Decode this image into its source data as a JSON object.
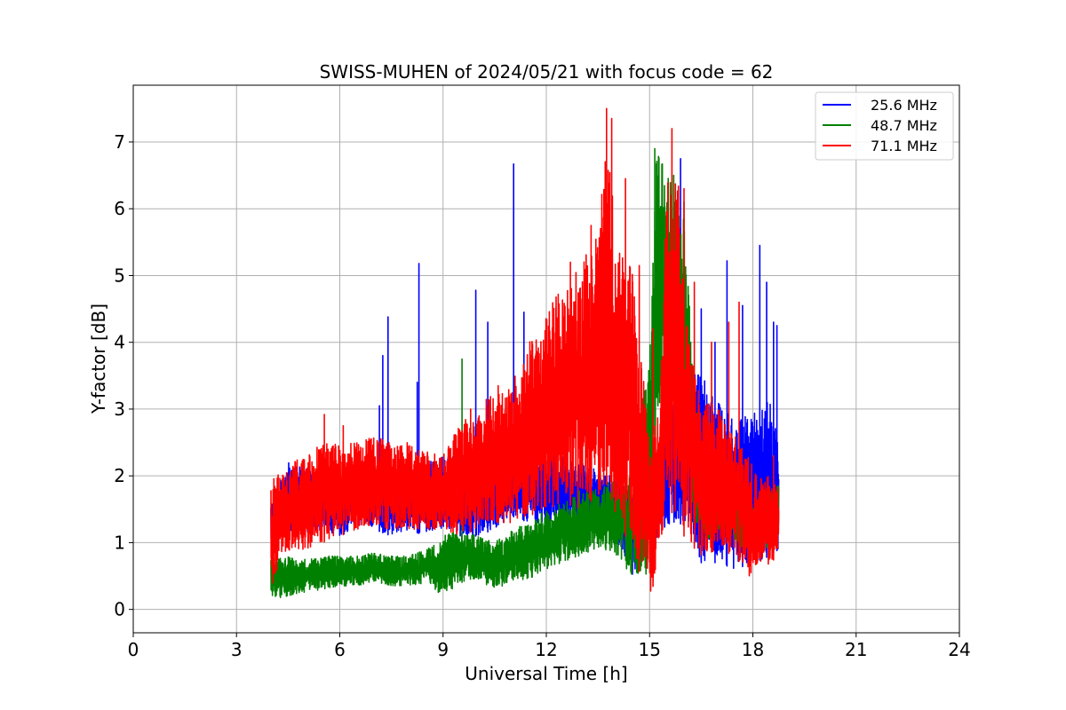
{
  "chart_data": {
    "type": "line",
    "title": "SWISS-MUHEN of 2024/05/21 with focus code = 62",
    "xlabel": "Universal Time [h]",
    "ylabel": "Y-factor [dB]",
    "xlim": [
      0,
      24
    ],
    "ylim": [
      -0.35,
      7.85
    ],
    "xticks": [
      0,
      3,
      6,
      9,
      12,
      15,
      18,
      21,
      24
    ],
    "yticks": [
      0,
      1,
      2,
      3,
      4,
      5,
      6,
      7
    ],
    "grid": true,
    "legend_position": "top-right",
    "series": [
      {
        "name": "25.6 MHz",
        "color": "#0000ff",
        "x_start": 4.0,
        "x_end": 18.75,
        "envelope": {
          "x": [
            4.0,
            4.5,
            5.0,
            5.5,
            6.0,
            6.5,
            7.0,
            7.5,
            8.0,
            8.5,
            9.0,
            9.5,
            10.0,
            10.5,
            11.0,
            11.5,
            12.0,
            12.5,
            13.0,
            13.5,
            14.0,
            14.5,
            15.0,
            15.5,
            16.0,
            16.5,
            17.0,
            17.5,
            18.0,
            18.5,
            18.75
          ],
          "low": [
            1.0,
            1.2,
            1.1,
            1.2,
            1.1,
            1.2,
            1.2,
            1.1,
            1.2,
            1.1,
            1.2,
            1.1,
            1.1,
            1.2,
            1.4,
            1.3,
            1.3,
            1.3,
            1.2,
            1.2,
            1.1,
            0.5,
            0.9,
            1.2,
            1.3,
            0.7,
            0.7,
            0.6,
            0.7,
            0.8,
            0.9
          ],
          "high": [
            1.6,
            2.2,
            2.1,
            2.1,
            2.0,
            2.1,
            2.2,
            2.1,
            2.2,
            2.2,
            2.3,
            2.3,
            2.3,
            2.1,
            2.4,
            2.3,
            2.4,
            2.3,
            2.2,
            2.1,
            2.0,
            1.8,
            2.4,
            3.0,
            3.4,
            3.6,
            3.2,
            2.8,
            3.0,
            3.2,
            2.4
          ]
        },
        "spikes": [
          [
            7.15,
            3.05
          ],
          [
            7.25,
            3.8
          ],
          [
            7.4,
            4.38
          ],
          [
            8.25,
            3.4
          ],
          [
            8.3,
            5.18
          ],
          [
            9.95,
            4.78
          ],
          [
            10.3,
            4.3
          ],
          [
            11.05,
            6.67
          ],
          [
            11.35,
            4.45
          ],
          [
            15.9,
            6.75
          ],
          [
            16.5,
            4.5
          ],
          [
            16.9,
            4.0
          ],
          [
            17.25,
            5.22
          ],
          [
            17.7,
            4.55
          ],
          [
            18.2,
            5.45
          ],
          [
            18.4,
            4.9
          ],
          [
            18.6,
            4.3
          ],
          [
            18.7,
            4.25
          ]
        ]
      },
      {
        "name": "48.7 MHz",
        "color": "#008000",
        "x_start": 4.0,
        "x_end": 18.75,
        "envelope": {
          "x": [
            4.0,
            4.5,
            5.0,
            5.5,
            6.0,
            6.5,
            7.0,
            7.5,
            8.0,
            8.5,
            9.0,
            9.5,
            10.0,
            10.5,
            11.0,
            11.5,
            12.0,
            12.5,
            13.0,
            13.5,
            14.0,
            14.5,
            15.0,
            15.2,
            15.5,
            15.8,
            16.0,
            16.3,
            16.6,
            17.0,
            17.5,
            18.0,
            18.5,
            18.75
          ],
          "low": [
            0.15,
            0.2,
            0.25,
            0.3,
            0.35,
            0.35,
            0.4,
            0.35,
            0.35,
            0.4,
            0.2,
            0.4,
            0.45,
            0.3,
            0.4,
            0.45,
            0.6,
            0.7,
            0.8,
            0.9,
            0.8,
            0.5,
            0.5,
            2.5,
            3.5,
            3.5,
            3.0,
            1.2,
            1.0,
            1.2,
            1.0,
            0.8,
            0.9,
            1.0
          ],
          "high": [
            0.8,
            0.8,
            0.75,
            0.8,
            0.8,
            0.8,
            0.85,
            0.8,
            0.8,
            0.9,
            1.1,
            1.2,
            1.1,
            1.0,
            1.2,
            1.3,
            1.5,
            1.6,
            1.8,
            1.8,
            2.0,
            2.0,
            4.0,
            6.9,
            6.5,
            6.3,
            6.0,
            3.2,
            2.2,
            2.0,
            1.8,
            1.6,
            1.8,
            1.9
          ]
        },
        "spikes": [
          [
            9.55,
            3.75
          ],
          [
            15.15,
            6.9
          ],
          [
            15.7,
            6.5
          ],
          [
            16.0,
            6.1
          ]
        ]
      },
      {
        "name": "71.1 MHz",
        "color": "#ff0000",
        "x_start": 4.0,
        "x_end": 18.75,
        "envelope": {
          "x": [
            4.0,
            4.3,
            4.6,
            5.0,
            5.5,
            6.0,
            6.5,
            7.0,
            7.5,
            8.0,
            8.5,
            9.0,
            9.5,
            10.0,
            10.5,
            11.0,
            11.5,
            12.0,
            12.5,
            13.0,
            13.5,
            13.8,
            14.0,
            14.5,
            15.0,
            15.3,
            15.5,
            15.8,
            16.0,
            16.5,
            17.0,
            17.5,
            18.0,
            18.5,
            18.75
          ],
          "low": [
            0.15,
            0.8,
            0.9,
            0.9,
            1.0,
            1.1,
            1.2,
            1.2,
            1.2,
            1.2,
            1.2,
            1.2,
            1.1,
            1.2,
            1.3,
            1.3,
            1.4,
            1.5,
            1.6,
            1.5,
            1.7,
            1.9,
            1.4,
            0.9,
            0.1,
            0.8,
            1.5,
            1.4,
            1.1,
            0.8,
            0.9,
            0.8,
            0.4,
            0.7,
            0.8
          ],
          "high": [
            1.9,
            2.1,
            2.2,
            2.3,
            2.5,
            2.5,
            2.5,
            2.6,
            2.5,
            2.5,
            2.4,
            2.3,
            2.8,
            3.0,
            3.3,
            3.5,
            4.0,
            4.4,
            5.0,
            5.2,
            5.8,
            7.4,
            5.4,
            5.2,
            2.5,
            3.2,
            6.5,
            6.8,
            4.5,
            3.2,
            3.0,
            2.6,
            2.2,
            2.0,
            1.8
          ]
        },
        "spikes": [
          [
            5.55,
            2.92
          ],
          [
            6.1,
            2.75
          ],
          [
            9.8,
            3.0
          ],
          [
            10.6,
            3.35
          ],
          [
            10.95,
            3.1
          ],
          [
            11.6,
            3.97
          ],
          [
            12.7,
            5.2
          ],
          [
            13.3,
            5.75
          ],
          [
            13.75,
            7.5
          ],
          [
            13.9,
            7.35
          ],
          [
            14.3,
            6.45
          ],
          [
            14.7,
            5.15
          ],
          [
            15.1,
            4.2
          ],
          [
            15.65,
            7.2
          ],
          [
            16.0,
            6.3
          ],
          [
            16.3,
            4.9
          ],
          [
            16.8,
            4.0
          ],
          [
            17.3,
            4.3
          ],
          [
            17.6,
            4.6
          ],
          [
            18.6,
            2.3
          ]
        ]
      }
    ]
  }
}
